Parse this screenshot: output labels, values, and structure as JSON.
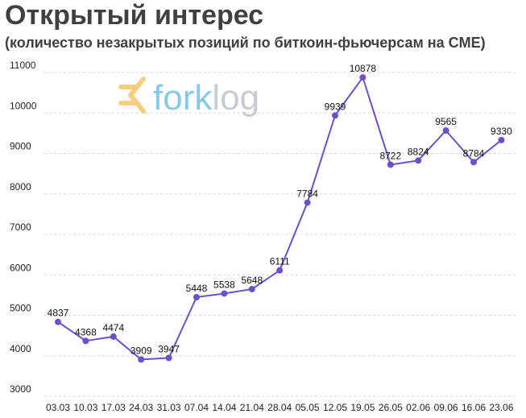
{
  "title": "Открытый интерес",
  "subtitle": "(количество незакрытых позиций по биткоин-фьючерсам на CME)",
  "logo": {
    "text_a": "fork",
    "text_b": "log",
    "color_a": "#1fa0dc",
    "color_b": "#9aa3ad",
    "icon_color": "#f2a51a"
  },
  "chart_data": {
    "type": "line",
    "title": "Открытый интерес",
    "subtitle": "(количество незакрытых позиций по биткоин-фьючерсам на CME)",
    "categories": [
      "03.03",
      "10.03",
      "17.03",
      "24.03",
      "31.03",
      "07.04",
      "14.04",
      "21.04",
      "28.04",
      "05.05",
      "12.05",
      "19.05",
      "26.05",
      "02.06",
      "09.06",
      "16.06",
      "23.06"
    ],
    "series": [
      {
        "values": [
          4837,
          4368,
          4474,
          3909,
          3947,
          5448,
          5538,
          5648,
          6111,
          7784,
          9939,
          10878,
          8722,
          8824,
          9565,
          8784,
          9330
        ]
      }
    ],
    "data_labels": [
      "4837",
      "4368",
      "4474",
      "3909",
      "3947",
      "5448",
      "5538",
      "5648",
      "6111",
      "7784",
      "9939",
      "10878",
      "8722",
      "8824",
      "9565",
      "8784",
      "9330"
    ],
    "ylim": [
      3000,
      11000
    ],
    "yticks": [
      "3000",
      "4000",
      "5000",
      "6000",
      "7000",
      "8000",
      "9000",
      "10000",
      "11000"
    ],
    "grid": true,
    "line_color": "#6a51c9",
    "marker_color": "#6a51c9"
  }
}
